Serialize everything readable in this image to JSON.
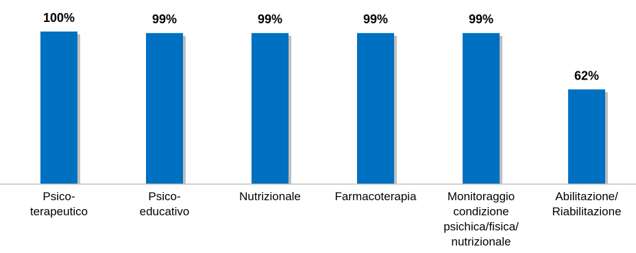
{
  "chart_data": {
    "type": "bar",
    "categories": [
      [
        "Psico-",
        "terapeutico"
      ],
      [
        "Psico-",
        "educativo"
      ],
      [
        "Nutrizionale"
      ],
      [
        "Farmacoterapia"
      ],
      [
        "Monitoraggio",
        "condizione",
        "psichica/fisica/",
        "nutrizionale"
      ],
      [
        "Abilitazione/",
        "Riabilitazione"
      ]
    ],
    "values": [
      100,
      99,
      99,
      99,
      99,
      62
    ],
    "value_labels": [
      "100%",
      "99%",
      "99%",
      "99%",
      "99%",
      "62%"
    ],
    "ylim": [
      0,
      100
    ],
    "grid": false,
    "legend": "none",
    "bar_color": "#0070C0",
    "shadow_color": "#BFBFBF",
    "axis_color": "#BFBFBF"
  }
}
